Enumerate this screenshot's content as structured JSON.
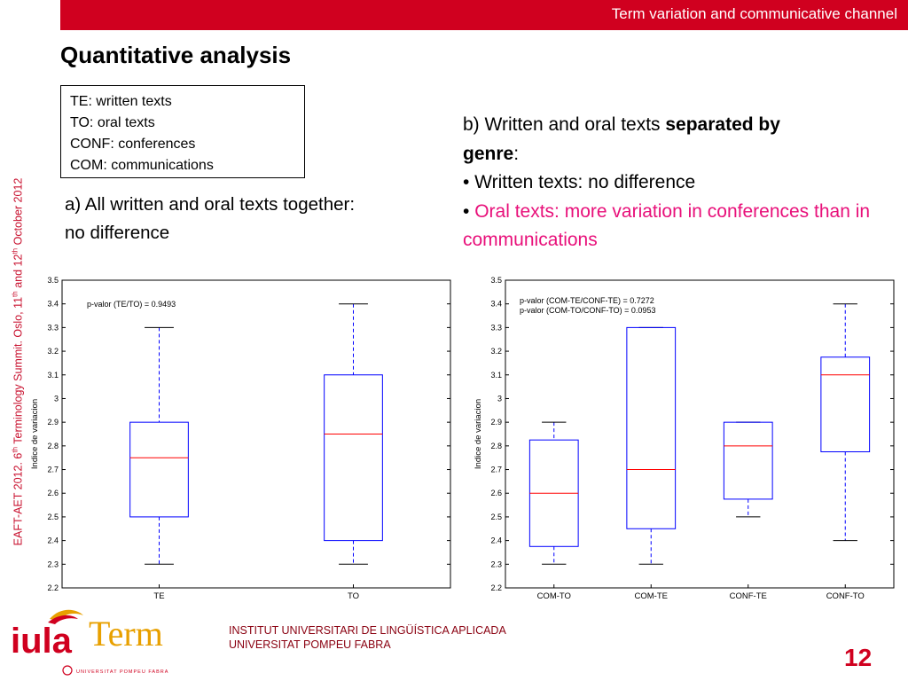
{
  "header": {
    "title": "Term variation and communicative channel"
  },
  "slide": {
    "title": "Quantitative analysis"
  },
  "legend": {
    "lines": [
      "TE: written texts",
      "TO: oral texts",
      "CONF: conferences",
      "COM: communications"
    ]
  },
  "section_a": {
    "text": "a) All written and oral texts together: no difference"
  },
  "section_b": {
    "intro_pre": "b) Written and oral texts ",
    "intro_bold1": "separated by",
    "intro_bold2": "genre",
    "intro_post": ":",
    "bullet1": "• Written texts: no difference",
    "bullet2_mark": "• ",
    "bullet2": "Oral texts: more variation in conferences than in communications"
  },
  "side_text": {
    "p1": "EAFT-AET 2012. 6",
    "s1": "th",
    "p2": " Terminology Summit. Oslo, 11",
    "s2": "th",
    "p3": " and 12",
    "s3": "th",
    "p4": " October 2012"
  },
  "footer": {
    "line1": "INSTITUT UNIVERSITARI DE LINGÜÍSTICA APLICADA",
    "line2": "UNIVERSITAT POMPEU FABRA",
    "page_number": "12"
  },
  "logo": {
    "iula": "iula",
    "term": "Term",
    "tagline": "UNIVERSITAT POMPEU FABRA"
  },
  "colors": {
    "accent_red": "#d0001f",
    "pink": "#e8107a",
    "box_blue": "#0000ff",
    "median_red": "#ff0000"
  },
  "chart_data": [
    {
      "type": "boxplot",
      "ylabel": "Indice de variacion",
      "ylim": [
        2.2,
        3.5
      ],
      "yticks": [
        2.2,
        2.3,
        2.4,
        2.5,
        2.6,
        2.7,
        2.8,
        2.9,
        3,
        3.1,
        3.2,
        3.3,
        3.4,
        3.5
      ],
      "annotations": [
        "p-valor (TE/TO) = 0.9493"
      ],
      "categories": [
        "TE",
        "TO"
      ],
      "boxes": [
        {
          "min": 2.3,
          "q1": 2.5,
          "median": 2.75,
          "q3": 2.9,
          "max": 3.3
        },
        {
          "min": 2.3,
          "q1": 2.4,
          "median": 2.85,
          "q3": 3.1,
          "max": 3.4
        }
      ]
    },
    {
      "type": "boxplot",
      "ylabel": "Indice de variacion",
      "ylim": [
        2.2,
        3.5
      ],
      "yticks": [
        2.2,
        2.3,
        2.4,
        2.5,
        2.6,
        2.7,
        2.8,
        2.9,
        3,
        3.1,
        3.2,
        3.3,
        3.4,
        3.5
      ],
      "annotations": [
        "p-valor (COM-TE/CONF-TE) = 0.7272",
        "p-valor (COM-TO/CONF-TO) = 0.0953"
      ],
      "categories": [
        "COM-TO",
        "COM-TE",
        "CONF-TE",
        "CONF-TO"
      ],
      "boxes": [
        {
          "min": 2.3,
          "q1": 2.375,
          "median": 2.6,
          "q3": 2.825,
          "max": 2.9
        },
        {
          "min": 2.3,
          "q1": 2.45,
          "median": 2.7,
          "q3": 3.3,
          "max": 3.3
        },
        {
          "min": 2.5,
          "q1": 2.575,
          "median": 2.8,
          "q3": 2.9,
          "max": 2.9
        },
        {
          "min": 2.4,
          "q1": 2.775,
          "median": 3.1,
          "q3": 3.175,
          "max": 3.4
        }
      ]
    }
  ]
}
